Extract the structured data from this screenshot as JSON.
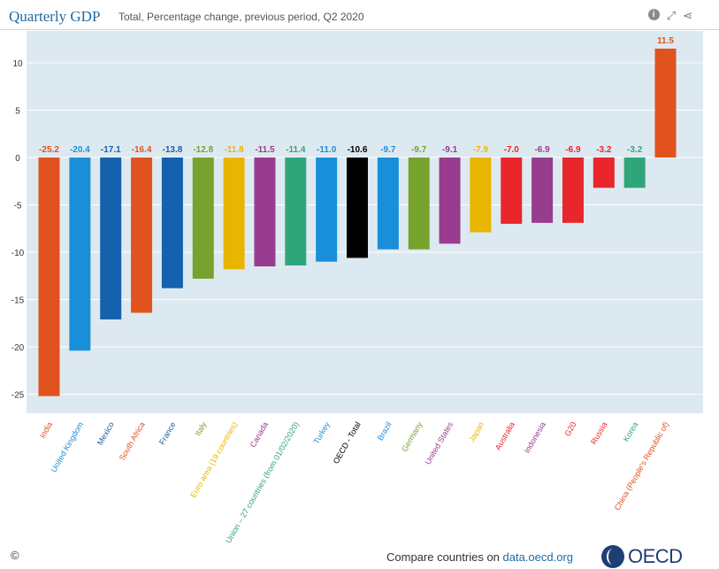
{
  "header": {
    "title": "Quarterly GDP",
    "subtitle": "Total, Percentage change, previous period, Q2 2020"
  },
  "footer": {
    "copyright": "©",
    "compare_prefix": "Compare countries on ",
    "compare_link": "data.oecd.org",
    "logo_text": "OECD"
  },
  "icons": [
    "info-icon",
    "fullscreen-icon",
    "share-icon"
  ],
  "chart_data": {
    "type": "bar",
    "title": "Quarterly GDP",
    "subtitle": "Total, Percentage change, previous period, Q2 2020",
    "xlabel": "",
    "ylabel": "",
    "ylim": [
      -27,
      13
    ],
    "yticks": [
      10,
      5,
      0,
      -5,
      -10,
      -15,
      -20,
      -25
    ],
    "grid": true,
    "categories": [
      "India",
      "United Kingdom",
      "Mexico",
      "South Africa",
      "France",
      "Italy",
      "Euro area (19 countries)",
      "Canada",
      "European Union – 27 countries (from 01/02/2020)",
      "Turkey",
      "OECD - Total",
      "Brazil",
      "Germany",
      "United States",
      "Japan",
      "Australia",
      "Indonesia",
      "G20",
      "Russia",
      "Korea",
      "China (People's Republic of)"
    ],
    "values": [
      -25.2,
      -20.4,
      -17.1,
      -16.4,
      -13.8,
      -12.8,
      -11.8,
      -11.5,
      -11.4,
      -11.0,
      -10.6,
      -9.7,
      -9.7,
      -9.1,
      -7.9,
      -7.0,
      -6.9,
      -6.9,
      -3.2,
      -3.2,
      11.5
    ],
    "value_labels": [
      "-25.2",
      "-20.4",
      "-17.1",
      "-16.4",
      "-13.8",
      "-12.8",
      "-11.8",
      "-11.5",
      "-11.4",
      "-11.0",
      "-10.6",
      "-9.7",
      "-9.7",
      "-9.1",
      "-7.9",
      "-7.0",
      "-6.9",
      "-6.9",
      "-3.2",
      "-3.2",
      "11.5"
    ],
    "colors": [
      "#e0531f",
      "#1a8fd9",
      "#1461ad",
      "#e0531f",
      "#1461ad",
      "#78a22e",
      "#e8b500",
      "#973c8e",
      "#2fa67a",
      "#1a8fd9",
      "#000000",
      "#1a8fd9",
      "#78a22e",
      "#973c8e",
      "#e8b500",
      "#e8262c",
      "#973c8e",
      "#e8262c",
      "#e8262c",
      "#2fa67a",
      "#e0531f"
    ],
    "plot_background": "#dde9f0"
  }
}
